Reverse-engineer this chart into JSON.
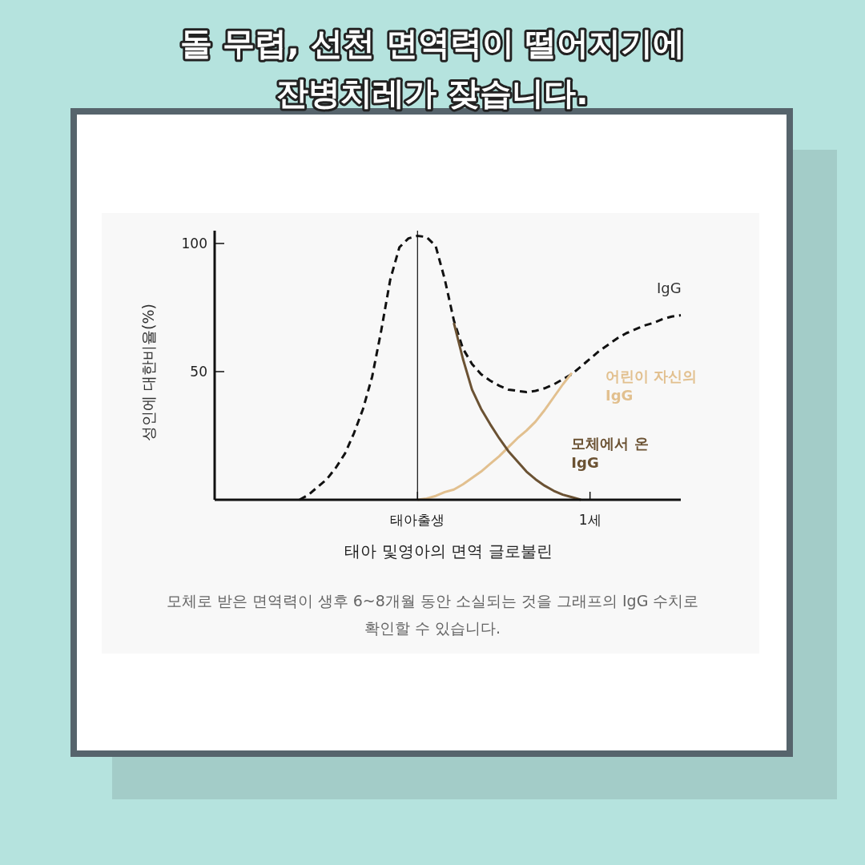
{
  "chart_data": {
    "type": "line",
    "title": "돌 무렵, 선천 면역력이 떨어지기에 잔병치레가 잦습니다.",
    "xlabel": "태아 및영아의 면역 글로불린",
    "ylabel": "성인에 대한비율(%)",
    "annotations": [
      "모체로 받은 면역력이 생후 6~8개월 동안 소실되는 것을 그래프의 IgG 수치로 확인할 수 있습니다."
    ],
    "categories": [
      null,
      null,
      null,
      null,
      null,
      null,
      null,
      null,
      null,
      null,
      null,
      null,
      null,
      null,
      null,
      null,
      null,
      null,
      null,
      null,
      null,
      null,
      "태아출생",
      null,
      null,
      null,
      null,
      null,
      null,
      null,
      null,
      null,
      null,
      null,
      null,
      null,
      null,
      null,
      null,
      null,
      null,
      "1세",
      null,
      null,
      null,
      null,
      null,
      null,
      null,
      null,
      null,
      null
    ],
    "ylim": [
      0,
      105
    ],
    "yticks": [
      50,
      100
    ],
    "ref_lines": [
      {
        "axis": "x",
        "value": "태아출생",
        "color": "#111111"
      }
    ],
    "marker": "none",
    "grid": false,
    "series": [
      {
        "name": "IgG",
        "color": "#111111",
        "line_style": "dashed",
        "values": [
          null,
          null,
          null,
          null,
          null,
          null,
          null,
          null,
          null,
          0,
          2,
          5,
          8,
          12.5,
          18,
          26,
          35.5,
          48,
          66,
          86,
          98.5,
          102,
          103,
          102.5,
          99,
          86,
          70,
          59,
          53,
          49,
          46.5,
          44.5,
          43,
          42.5,
          42,
          42.5,
          43.5,
          45,
          47,
          49,
          52,
          55,
          58,
          60.5,
          63,
          65,
          66.5,
          68,
          69,
          70.5,
          71.5,
          72
        ]
      },
      {
        "name": "어린이 자신의 IgG",
        "color": "#e2c08f",
        "line_style": "solid",
        "values": [
          null,
          null,
          null,
          null,
          null,
          null,
          null,
          null,
          null,
          null,
          null,
          null,
          null,
          null,
          null,
          null,
          null,
          null,
          null,
          null,
          null,
          null,
          0,
          0.5,
          1.5,
          3,
          4,
          6,
          8.5,
          11,
          14,
          17,
          20.5,
          24,
          27,
          30.5,
          35,
          40,
          45,
          49.5,
          null,
          null,
          null,
          null,
          null,
          null,
          null,
          null,
          null,
          null,
          null,
          null
        ]
      },
      {
        "name": "모체에서 온 IgG",
        "color": "#6b5233",
        "line_style": "solid",
        "values": [
          null,
          null,
          null,
          null,
          null,
          null,
          null,
          null,
          null,
          null,
          null,
          null,
          null,
          null,
          null,
          null,
          null,
          null,
          null,
          null,
          null,
          null,
          null,
          null,
          null,
          null,
          69,
          55,
          43,
          35.5,
          29.5,
          24,
          19,
          15,
          11,
          8,
          5.5,
          3.5,
          2,
          1,
          0,
          null,
          null,
          null,
          null,
          null,
          null,
          null,
          null,
          null,
          null,
          null
        ]
      }
    ]
  }
}
